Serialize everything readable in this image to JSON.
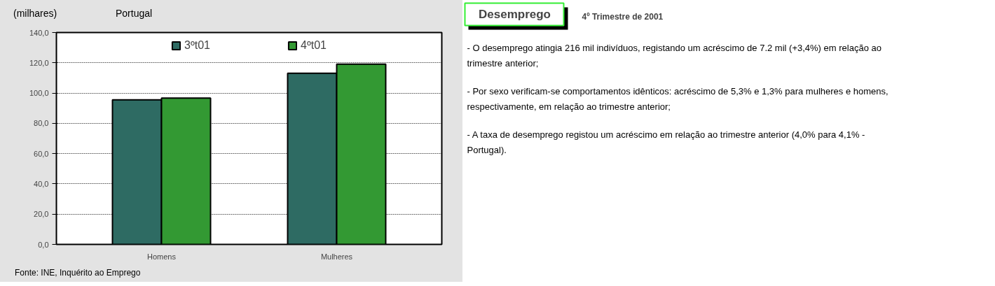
{
  "chart_data": [
    {
      "type": "bar",
      "title": "Portugal",
      "ylabel": "(milhares)",
      "categories": [
        "Homens",
        "Mulheres"
      ],
      "series": [
        {
          "name": "3ºt01",
          "color": "#2e6b63",
          "values": [
            95.5,
            113.1
          ]
        },
        {
          "name": "4ºt01",
          "color": "#339933",
          "values": [
            96.7,
            119.1
          ]
        }
      ],
      "ylim": [
        0,
        140
      ],
      "yticks": [
        {
          "value": 0,
          "label": "0,0"
        },
        {
          "value": 20,
          "label": "20,0"
        },
        {
          "value": 40,
          "label": "40,0"
        },
        {
          "value": 60,
          "label": "60,0"
        },
        {
          "value": 80,
          "label": "80,0"
        },
        {
          "value": 100,
          "label": "100,0"
        },
        {
          "value": 120,
          "label": "120,0"
        },
        {
          "value": 140,
          "label": "140,0"
        }
      ],
      "grid": "y",
      "legend": "top",
      "annotations": [
        "Fonte: INE, Inquérito ao Emprego"
      ]
    },
    {
      "type": "other",
      "title": "Desemprego",
      "subtitle": "4º Trimestre de 2001",
      "annotations": [
        "- O desemprego atingia 216 mil indivíduos, registando um acréscimo de 7.2 mil (+3,4%)  em relação  ao  trimestre anterior;",
        "- Por sexo verificam-se comportamentos idênticos: acréscimo de  5,3% e 1,3% para mulheres e homens, respectivamente,  em relação ao trimestre anterior;",
        "-   A taxa de desemprego registou um acréscimo em relação ao trimestre anterior (4,0% para 4,1% - Portugal)."
      ]
    }
  ]
}
